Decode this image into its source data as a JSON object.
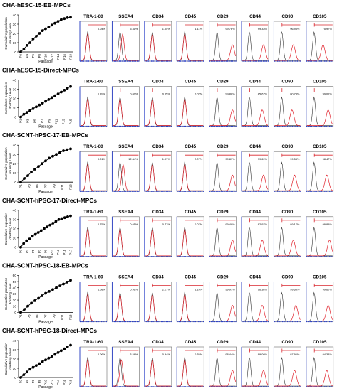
{
  "figure": {
    "growth": {
      "ylabel_line1": "Cumulative population",
      "ylabel_line2": "doubling Level",
      "xlabel": "Passage",
      "yticks": [
        "0",
        "10",
        "20",
        "30",
        "40"
      ],
      "yticks_60": [
        "0",
        "10",
        "20",
        "30",
        "40",
        "50",
        "60"
      ]
    },
    "markers": [
      "TRA-1-60",
      "SSEA4",
      "CD34",
      "CD45",
      "CD29",
      "CD44",
      "CD90",
      "CD105"
    ],
    "colors": {
      "control": "#333333",
      "stain": "#e0202a",
      "gate": "#d9272e",
      "axis": "#2a3fc8",
      "growth": "#000000"
    },
    "rows": [
      {
        "title": "CHA-hESC-15-EB-MPCs",
        "passages": [
          "P2",
          "P4",
          "P6",
          "P8",
          "P10",
          "P12",
          "P14",
          "P16",
          "P18"
        ],
        "ymax": 40,
        "series": [
          0,
          3,
          7,
          10,
          14,
          17,
          20,
          23,
          25,
          27,
          29,
          31,
          33,
          35,
          36,
          37,
          37.5
        ],
        "percents": [
          "0.04%",
          "5.31%",
          "1.05%",
          "1.11%",
          "99.76%",
          "99.33%",
          "96.95%",
          "75.97%"
        ],
        "shift": [
          0,
          0.1,
          0,
          0,
          0.6,
          0.55,
          0.45,
          0.35
        ]
      },
      {
        "title": "CHA-hESC-15-Direct-MPCs",
        "passages": [
          "P1",
          "P3",
          "P5",
          "P7",
          "P9",
          "P11",
          "P13",
          "P15"
        ],
        "ymax": 40,
        "series": [
          0,
          3,
          5,
          7,
          9,
          11,
          13,
          15,
          17,
          19,
          21,
          23,
          25,
          27,
          29,
          31,
          33
        ],
        "percents": [
          "1.39%",
          "0.00%",
          "0.05%",
          "0.02%",
          "99.88%",
          "85.67%",
          "80.73%",
          "99.01%"
        ],
        "shift": [
          0,
          0,
          0,
          0,
          0.6,
          0.5,
          0.4,
          0.55
        ]
      },
      {
        "title": "CHA-SCNT-hPSC-17-EB-MPCs",
        "passages": [
          "P1",
          "P3",
          "P5",
          "P7",
          "P9",
          "P11",
          "P13"
        ],
        "ymax": 40,
        "series": [
          0,
          4,
          7,
          11,
          14,
          17,
          20,
          23,
          26,
          28,
          30,
          32,
          34,
          35,
          36
        ],
        "percents": [
          "0.01%",
          "12.44%",
          "1.07%",
          "2.07%",
          "99.89%",
          "99.69%",
          "99.53%",
          "98.47%"
        ],
        "shift": [
          0,
          0.12,
          0,
          0,
          0.6,
          0.55,
          0.5,
          0.5
        ]
      },
      {
        "title": "CHA-SCNT-hPSC-17-Direct-MPCs",
        "passages": [
          "P1",
          "P3",
          "P5",
          "P7",
          "P9",
          "P11",
          "P13",
          "P15",
          "P17"
        ],
        "ymax": 40,
        "series": [
          0,
          4,
          7,
          9,
          12,
          14,
          16,
          18,
          20,
          22,
          24,
          26,
          28,
          30,
          31,
          32,
          33,
          34
        ],
        "percents": [
          "0.75%",
          "0.05%",
          "0.77%",
          "0.07%",
          "99.48%",
          "92.97%",
          "89.17%",
          "99.89%"
        ],
        "shift": [
          0,
          0,
          0,
          0,
          0.6,
          0.5,
          0.45,
          0.6
        ]
      },
      {
        "title": "CHA-SCNT-hPSC-18-EB-MPCs",
        "passages": [
          "P1",
          "P3",
          "P5",
          "P7",
          "P9",
          "P11",
          "P13"
        ],
        "ymax": 60,
        "series": [
          0,
          5,
          10,
          15,
          19,
          23,
          27,
          31,
          34,
          37,
          40,
          43,
          46,
          49,
          52
        ],
        "percents": [
          "1.08%",
          "0.96%",
          "2.27%",
          "1.15%",
          "99.97%",
          "96.38%",
          "99.66%",
          "99.60%"
        ],
        "shift": [
          0,
          0,
          0,
          0,
          0.6,
          0.5,
          0.55,
          0.55
        ]
      },
      {
        "title": "CHA-SCNT-hPSC-18-Direct-MPCs",
        "passages": [
          "P2",
          "P4",
          "P6",
          "P8",
          "P10",
          "P12",
          "P14",
          "P16",
          "P18"
        ],
        "ymax": 40,
        "series": [
          0,
          3,
          6,
          9,
          11,
          13,
          15,
          17,
          19,
          21,
          23,
          25,
          27,
          29,
          31,
          33,
          35
        ],
        "percents": [
          "0.06%",
          "3.58%",
          "0.94%",
          "0.35%",
          "98.44%",
          "99.08%",
          "97.96%",
          "94.34%"
        ],
        "shift": [
          0,
          0.05,
          0,
          0,
          0.6,
          0.55,
          0.5,
          0.5
        ]
      }
    ]
  }
}
